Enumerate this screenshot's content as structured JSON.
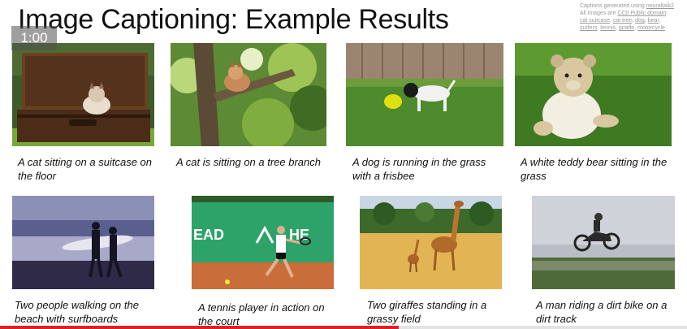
{
  "slide": {
    "title": "Image Captioning: Example Results"
  },
  "credits": {
    "line1_prefix": "Captions generated using ",
    "line1_link": "neuraltalk2",
    "line2_prefix": "All images are ",
    "line2_link": "CC0 Public domain",
    "line2_suffix": ":",
    "links": [
      "cat suitcase",
      "cat tree",
      "dog",
      "bear",
      "surfers",
      "tennis",
      "giraffe",
      "motorcycle"
    ]
  },
  "player": {
    "timestamp": "1:00",
    "progress_fraction": 0.58,
    "progress_color": "#e02020"
  },
  "results": [
    {
      "caption": "A cat sitting on a suitcase on the floor"
    },
    {
      "caption": "A cat is sitting on a tree branch"
    },
    {
      "caption": "A dog is running in the grass with a frisbee"
    },
    {
      "caption": "A white teddy bear sitting in the grass"
    },
    {
      "caption": "Two people walking on the beach with surfboards"
    },
    {
      "caption": "A tennis player in action on the court"
    },
    {
      "caption": "Two giraffes standing in a grassy field"
    },
    {
      "caption": "A man riding a dirt bike on a dirt track"
    }
  ]
}
